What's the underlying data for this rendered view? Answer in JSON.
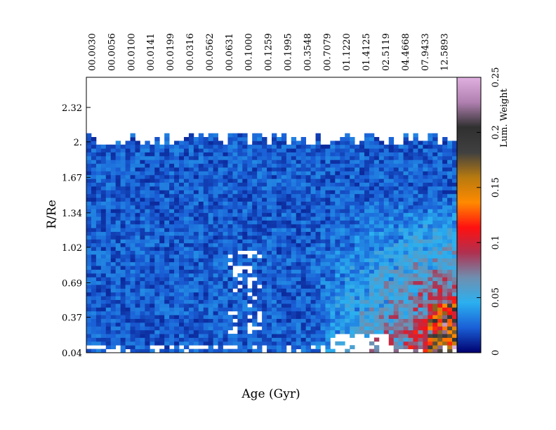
{
  "chart_data": {
    "type": "heatmap",
    "xlabel": "Age (Gyr)",
    "ylabel": "R/Re",
    "x_tick_labels": [
      "00.0030",
      "00.0056",
      "00.0100",
      "00.0141",
      "00.0199",
      "00.0316",
      "00.0562",
      "00.0631",
      "00.1000",
      "00.1259",
      "00.1995",
      "00.3548",
      "00.7079",
      "01.1220",
      "01.4125",
      "02.5119",
      "04.4668",
      "07.9433",
      "12.5893"
    ],
    "y_ticks": [
      0.04,
      0.37,
      0.69,
      1.02,
      1.34,
      1.67,
      2.0,
      2.32
    ],
    "y_tick_labels": [
      "0.04",
      "0.37",
      "0.69",
      "1.02",
      "1.34",
      "1.67",
      "2.",
      "2.32"
    ],
    "ylim": [
      0.04,
      2.6
    ],
    "colorbar": {
      "label": "Lum. Weight",
      "range": [
        0,
        0.25
      ],
      "ticks": [
        0,
        0.05,
        0.1,
        0.15,
        0.2,
        0.25
      ],
      "tick_labels": [
        "0",
        "0.05",
        "0.1",
        "0.15",
        "0.2",
        "0.25"
      ],
      "stops": [
        "#00006e",
        "#1a5fd6",
        "#2bb0f0",
        "#6f8fb0",
        "#b03050",
        "#ff1010",
        "#ff8a00",
        "#b87a10",
        "#404040",
        "#303030",
        "#b080b0",
        "#e0b0e0"
      ]
    },
    "grid": false
  }
}
